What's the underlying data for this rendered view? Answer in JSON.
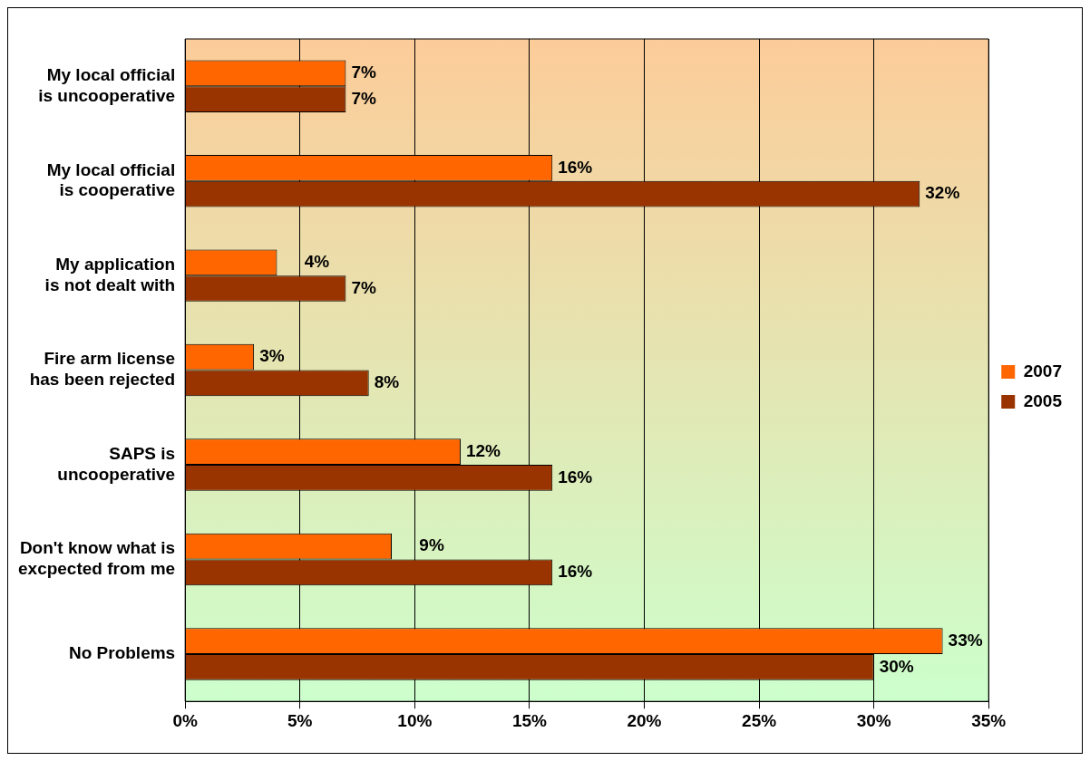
{
  "chart_data": {
    "type": "bar",
    "orientation": "horizontal",
    "categories": [
      "My local official is uncooperative",
      "My local official is cooperative",
      "My application is not dealt with",
      "Fire arm license has been rejected",
      "SAPS is uncooperative",
      "Don't know what is excpected from me",
      "No Problems"
    ],
    "series": [
      {
        "name": "2007",
        "color": "#ff6600",
        "values": [
          7,
          16,
          4,
          3,
          12,
          9,
          33
        ],
        "value_labels": [
          "7%",
          "16%",
          "4%",
          "3%",
          "12%",
          "9%",
          "33%"
        ]
      },
      {
        "name": "2005",
        "color": "#993300",
        "values": [
          7,
          32,
          7,
          8,
          16,
          16,
          30
        ],
        "value_labels": [
          "7%",
          "32%",
          "7%",
          "8%",
          "16%",
          "16%",
          "30%"
        ]
      }
    ],
    "xlim": [
      0,
      35
    ],
    "xticks": [
      {
        "value": 0,
        "label": "0%"
      },
      {
        "value": 5,
        "label": "5%"
      },
      {
        "value": 10,
        "label": "10%"
      },
      {
        "value": 15,
        "label": "15%"
      },
      {
        "value": 20,
        "label": "20%"
      },
      {
        "value": 25,
        "label": "25%"
      },
      {
        "value": 30,
        "label": "30%"
      },
      {
        "value": 35,
        "label": "35%"
      }
    ],
    "grid": "x",
    "legend": "right"
  }
}
